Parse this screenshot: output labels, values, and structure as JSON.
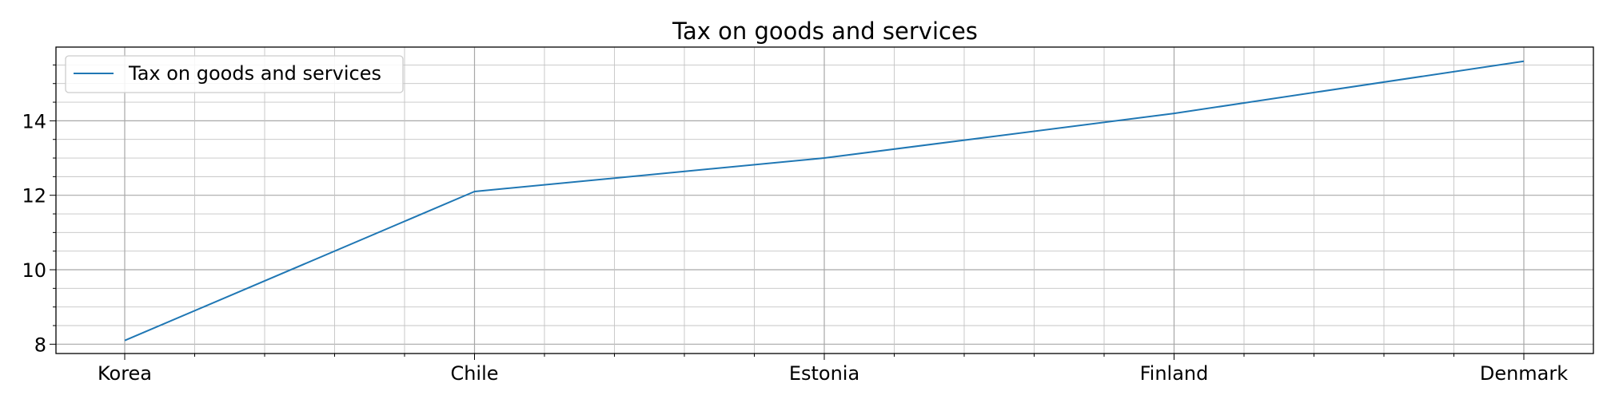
{
  "chart_data": {
    "type": "line",
    "title": "Tax on goods and services",
    "xlabel": "",
    "ylabel": "",
    "categories": [
      "Korea",
      "Chile",
      "Estonia",
      "Finland",
      "Denmark"
    ],
    "series": [
      {
        "name": "Tax on goods and services",
        "values": [
          8.1,
          12.1,
          13.0,
          14.2,
          15.6
        ],
        "color": "#1f77b4"
      }
    ],
    "ylim": [
      7.75,
      15.98
    ],
    "yticks": [
      8,
      10,
      12,
      14
    ],
    "y_minor_step": 0.5,
    "x_minor_per_category": 5,
    "grid": true,
    "legend": "upper-left"
  }
}
